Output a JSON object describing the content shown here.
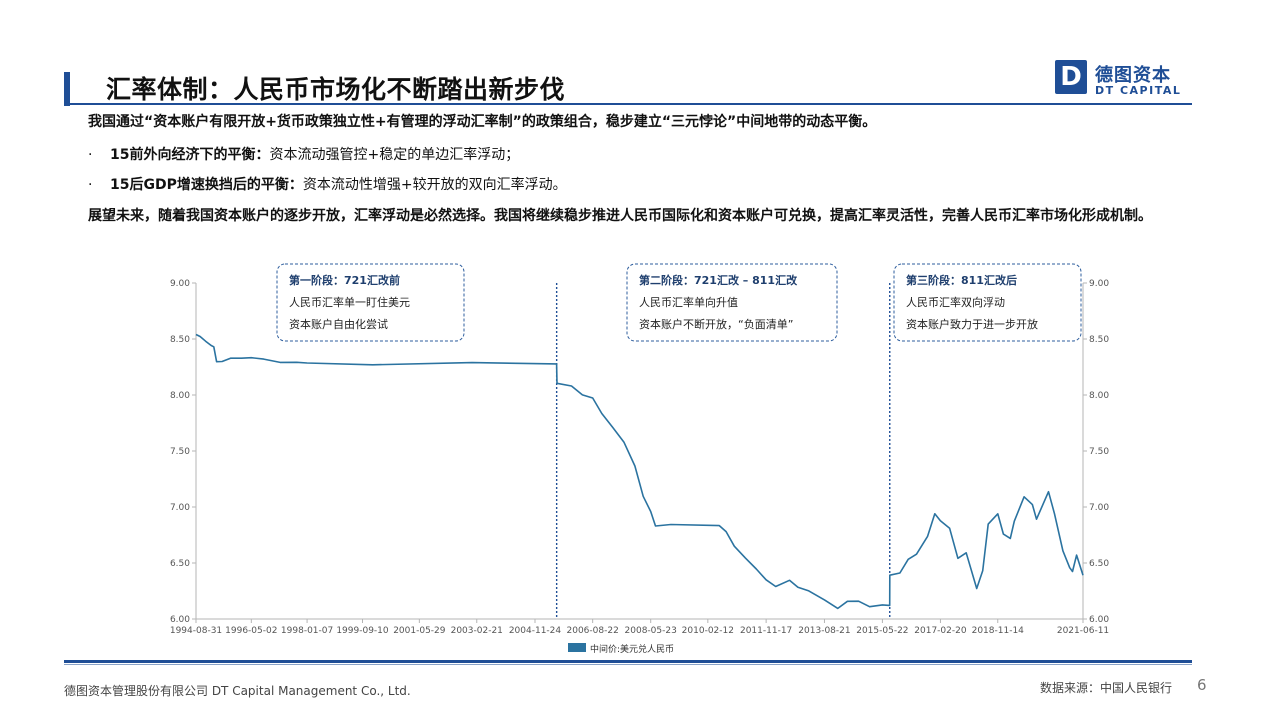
{
  "header": {
    "title": "汇率体制：人民币市场化不断踏出新步伐",
    "logo_mark": "D",
    "logo_cn": "德图资本",
    "logo_en": "DT CAPITAL"
  },
  "body": {
    "intro": "我国通过“资本账户有限开放+货币政策独立性+有管理的浮动汇率制”的政策组合，稳步建立“三元悖论”中间地带的动态平衡。",
    "bullets": [
      {
        "bullet": "·",
        "bold": "15前外向经济下的平衡：",
        "text": "资本流动强管控+稳定的单边汇率浮动；"
      },
      {
        "bullet": "·",
        "bold": "15后GDP增速换挡后的平衡：",
        "text": "资本流动性增强+较开放的双向汇率浮动。"
      }
    ],
    "outlook": "展望未来，随着我国资本账户的逐步开放，汇率浮动是必然选择。我国将继续稳步推进人民币国际化和资本账户可兑换，提高汇率灵活性，完善人民币汇率市场化形成机制。"
  },
  "chart_data": {
    "type": "line",
    "title": "",
    "xlabel": "",
    "ylabel": "",
    "ylim": [
      6.0,
      9.0
    ],
    "y_ticks": [
      "9.00",
      "8.50",
      "8.00",
      "7.50",
      "7.00",
      "6.50",
      "6.00"
    ],
    "right_y_ticks": [
      "9.00",
      "8.50",
      "8.00",
      "7.50",
      "7.00",
      "6.50",
      "6.00"
    ],
    "x_ticks": [
      "1994-08-31",
      "1996-05-02",
      "1998-01-07",
      "1999-09-10",
      "2001-05-29",
      "2003-02-21",
      "2004-11-24",
      "2006-08-22",
      "2008-05-23",
      "2010-02-12",
      "2011-11-17",
      "2013-08-21",
      "2015-05-22",
      "2017-02-20",
      "2018-11-14",
      "2021-06-11"
    ],
    "x_range": [
      "1994-08-31",
      "2021-06-11"
    ],
    "series": [
      {
        "name": "中间价:美元兑人民币",
        "color": "#2b73a0",
        "points": [
          [
            "1994-08-31",
            8.54
          ],
          [
            "1994-10-15",
            8.53
          ],
          [
            "1994-12-15",
            8.47
          ],
          [
            "1995-02-15",
            8.45
          ],
          [
            "1995-03-15",
            8.43
          ],
          [
            "1995-04-15",
            8.29
          ],
          [
            "1995-06-15",
            8.31
          ],
          [
            "1995-09-15",
            8.32
          ],
          [
            "1996-01-15",
            8.33
          ],
          [
            "1996-05-02",
            8.34
          ],
          [
            "1996-09-15",
            8.31
          ],
          [
            "1997-03-15",
            8.3
          ],
          [
            "1997-09-15",
            8.29
          ],
          [
            "1998-01-07",
            8.28
          ],
          [
            "2000-01-01",
            8.28
          ],
          [
            "2003-01-01",
            8.28
          ],
          [
            "2005-07-20",
            8.28
          ],
          [
            "2005-07-25",
            8.11
          ],
          [
            "2006-01-01",
            8.07
          ],
          [
            "2006-05-01",
            8.01
          ],
          [
            "2006-08-22",
            7.97
          ],
          [
            "2006-12-01",
            7.83
          ],
          [
            "2007-04-01",
            7.72
          ],
          [
            "2007-08-01",
            7.57
          ],
          [
            "2007-12-01",
            7.37
          ],
          [
            "2008-03-01",
            7.1
          ],
          [
            "2008-05-23",
            6.95
          ],
          [
            "2008-07-15",
            6.84
          ],
          [
            "2009-01-01",
            6.84
          ],
          [
            "2010-06-18",
            6.83
          ],
          [
            "2010-09-01",
            6.79
          ],
          [
            "2010-12-01",
            6.64
          ],
          [
            "2011-04-01",
            6.55
          ],
          [
            "2011-08-01",
            6.45
          ],
          [
            "2011-11-17",
            6.34
          ],
          [
            "2012-03-01",
            6.3
          ],
          [
            "2012-08-01",
            6.34
          ],
          [
            "2012-11-01",
            6.28
          ],
          [
            "2013-03-01",
            6.26
          ],
          [
            "2013-08-21",
            6.16
          ],
          [
            "2014-01-15",
            6.1
          ],
          [
            "2014-05-01",
            6.16
          ],
          [
            "2014-09-01",
            6.15
          ],
          [
            "2015-01-01",
            6.12
          ],
          [
            "2015-05-22",
            6.12
          ],
          [
            "2015-08-10",
            6.12
          ],
          [
            "2015-08-12",
            6.4
          ],
          [
            "2015-12-01",
            6.4
          ],
          [
            "2016-03-01",
            6.54
          ],
          [
            "2016-06-01",
            6.58
          ],
          [
            "2016-10-01",
            6.73
          ],
          [
            "2016-12-20",
            6.95
          ],
          [
            "2017-02-20",
            6.87
          ],
          [
            "2017-06-01",
            6.81
          ],
          [
            "2017-09-01",
            6.55
          ],
          [
            "2017-12-01",
            6.58
          ],
          [
            "2018-03-27",
            6.28
          ],
          [
            "2018-06-01",
            6.43
          ],
          [
            "2018-08-01",
            6.84
          ],
          [
            "2018-11-14",
            6.95
          ],
          [
            "2019-01-15",
            6.75
          ],
          [
            "2019-04-01",
            6.72
          ],
          [
            "2019-05-15",
            6.88
          ],
          [
            "2019-09-01",
            7.08
          ],
          [
            "2019-12-01",
            7.03
          ],
          [
            "2020-01-15",
            6.89
          ],
          [
            "2020-05-27",
            7.13
          ],
          [
            "2020-08-01",
            6.95
          ],
          [
            "2020-11-01",
            6.6
          ],
          [
            "2021-01-15",
            6.46
          ],
          [
            "2021-02-15",
            6.43
          ],
          [
            "2021-04-01",
            6.56
          ],
          [
            "2021-06-11",
            6.39
          ]
        ]
      }
    ],
    "dividers": [
      "2005-07-21",
      "2015-08-11"
    ],
    "annotations": [
      {
        "title": "第一阶段：721汇改前",
        "lines": [
          "人民币汇率单一盯住美元",
          "资本账户自由化尝试"
        ]
      },
      {
        "title": "第二阶段：721汇改 – 811汇改",
        "lines": [
          "人民币汇率单向升值",
          "资本账户不断开放，“负面清单”"
        ]
      },
      {
        "title": "第三阶段：811汇改后",
        "lines": [
          "人民币汇率双向浮动",
          "资本账户致力于进一步开放"
        ]
      }
    ],
    "legend": "bottom-center",
    "grid": false
  },
  "footer": {
    "company": "德图资本管理股份有限公司  DT Capital Management  Co., Ltd.",
    "source": "数据来源：中国人民银行",
    "page": "6"
  }
}
